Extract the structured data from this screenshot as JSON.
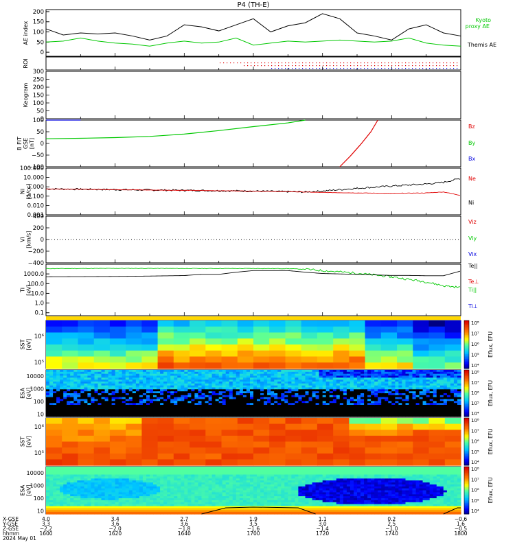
{
  "title": "P4 (TH-E)",
  "colors": {
    "black": "#000000",
    "green": "#00c800",
    "red": "#e00000",
    "blue": "#0000e0"
  },
  "chart_data": [
    {
      "type": "line",
      "panel": "ae_index",
      "ylabel": "AE index",
      "ylim": [
        -20,
        210
      ],
      "yticks": [
        "200",
        "150",
        "100",
        "50",
        "0"
      ],
      "x": [
        1600,
        1605,
        1610,
        1615,
        1620,
        1625,
        1630,
        1635,
        1640,
        1645,
        1650,
        1655,
        1700,
        1705,
        1710,
        1715,
        1720,
        1725,
        1730,
        1735,
        1740,
        1745,
        1750,
        1755,
        1800
      ],
      "series": [
        {
          "name": "Themis AE",
          "color": "black",
          "values": [
            115,
            85,
            95,
            90,
            95,
            80,
            60,
            80,
            135,
            125,
            105,
            135,
            165,
            100,
            130,
            145,
            190,
            165,
            95,
            80,
            60,
            115,
            135,
            95,
            80
          ]
        },
        {
          "name": "Kyoto proxy AE",
          "color": "green",
          "values": [
            50,
            55,
            70,
            55,
            45,
            40,
            30,
            45,
            55,
            45,
            50,
            70,
            35,
            45,
            55,
            50,
            55,
            60,
            55,
            50,
            55,
            70,
            45,
            35,
            30
          ]
        }
      ],
      "legend_labels": {
        "kyoto_line1": "Kyoto",
        "kyoto_line2": "proxy AE",
        "themis": "Themis AE"
      }
    },
    {
      "type": "scatter",
      "panel": "roi",
      "ylabel": "ROI"
    },
    {
      "type": "heatmap",
      "panel": "keogram",
      "ylabel": "Keogram",
      "ylim": [
        0,
        300
      ],
      "yticks": [
        "300",
        "250",
        "200",
        "150",
        "100",
        "50",
        "0"
      ]
    },
    {
      "type": "line",
      "panel": "b_field",
      "ylabel": "B FIT",
      "ylabel2": "GSE",
      "ylabel3": "[nT]",
      "ylim": [
        -100,
        100
      ],
      "yticks": [
        "100",
        "50",
        "0",
        "−50",
        "−100"
      ],
      "series": [
        {
          "name": "Bz",
          "color": "red",
          "x": [
            1725,
            1728,
            1731,
            1734,
            1736
          ],
          "values": [
            -100,
            -55,
            -5,
            50,
            100
          ]
        },
        {
          "name": "By",
          "color": "green",
          "x": [
            1600,
            1610,
            1620,
            1630,
            1640,
            1650,
            1700,
            1710,
            1715
          ],
          "values": [
            20,
            22,
            25,
            30,
            40,
            55,
            72,
            88,
            100
          ]
        },
        {
          "name": "Bx",
          "color": "blue",
          "x": [
            1600,
            1610
          ],
          "values": [
            100,
            100
          ]
        }
      ]
    },
    {
      "type": "line",
      "panel": "density",
      "ylabel": "Ni",
      "ylabel2": "[1/cc]",
      "ylabel3": "Ne",
      "yscale": "log",
      "ylim": [
        0.001,
        100
      ],
      "yticks": [
        "100.000",
        "10.000",
        "1.000",
        "0.100",
        "0.010",
        "0.001"
      ],
      "series": [
        {
          "name": "Ni",
          "color": "black",
          "x": [
            1600,
            1610,
            1620,
            1630,
            1640,
            1650,
            1700,
            1710,
            1715,
            1720,
            1730,
            1740,
            1750,
            1755,
            1800
          ],
          "values": [
            0.6,
            0.55,
            0.5,
            0.45,
            0.42,
            0.38,
            0.35,
            0.3,
            0.28,
            0.35,
            0.7,
            1.2,
            2.0,
            3.0,
            8.0
          ]
        },
        {
          "name": "Ne",
          "color": "red",
          "x": [
            1600,
            1610,
            1620,
            1630,
            1640,
            1650,
            1700,
            1710,
            1720,
            1730,
            1740,
            1750,
            1755,
            1800
          ],
          "values": [
            0.6,
            0.55,
            0.5,
            0.45,
            0.42,
            0.38,
            0.35,
            0.3,
            0.25,
            0.22,
            0.2,
            0.22,
            0.28,
            0.12
          ]
        }
      ]
    },
    {
      "type": "line",
      "panel": "velocity",
      "ylabel": "Vi",
      "ylabel2": "[km/s]",
      "ylim": [
        -400,
        400
      ],
      "yticks": [
        "400",
        "200",
        "0",
        "−200",
        "−400"
      ],
      "series": [
        {
          "name": "Viz"
        },
        {
          "name": "Viy"
        },
        {
          "name": "Vix"
        }
      ]
    },
    {
      "type": "line",
      "panel": "temperature",
      "ylabel": "Ti",
      "ylabel2": "[eV]",
      "yscale": "log",
      "ylim": [
        0.05,
        10000
      ],
      "yticks": [
        "1000.0",
        "100.0",
        "10.0",
        "1.0",
        "0.1"
      ],
      "series": [
        {
          "name": "Te||",
          "color": "black",
          "x": [
            1600,
            1610,
            1620,
            1630,
            1640,
            1645,
            1650,
            1655,
            1700,
            1710,
            1715,
            1720,
            1730,
            1740,
            1745,
            1750,
            1755,
            1800
          ],
          "values": [
            500,
            520,
            550,
            600,
            680,
            900,
            900,
            1500,
            2200,
            2200,
            1500,
            1100,
            900,
            700,
            700,
            650,
            650,
            2000
          ]
        },
        {
          "name": "Te⊥",
          "color": "red"
        },
        {
          "name": "Ti||",
          "color": "green",
          "x": [
            1600,
            1610,
            1620,
            1630,
            1640,
            1650,
            1700,
            1710,
            1715,
            1720,
            1730,
            1740,
            1750,
            1755,
            1800
          ],
          "values": [
            3500,
            3600,
            3700,
            3700,
            3600,
            3600,
            3600,
            3500,
            3000,
            2200,
            1200,
            500,
            150,
            60,
            40
          ]
        },
        {
          "name": "Ti⊥",
          "color": "blue"
        }
      ]
    },
    {
      "type": "heatmap",
      "panel": "sst_electron",
      "ylabel": "SST",
      "ylabel2": "[eV]",
      "yscale": "log",
      "yticks": [
        "10⁶",
        "10⁵"
      ],
      "colorbar_label": "Eflux, EFU",
      "colorbar_ticks": [
        "10⁸",
        "10⁴",
        "10⁵",
        "10⁶",
        "10⁷"
      ]
    },
    {
      "type": "heatmap",
      "panel": "esa_electron",
      "ylabel": "ESA",
      "ylabel2": "[eV]",
      "yscale": "log",
      "yticks": [
        "10000",
        "1000",
        "100",
        "10"
      ],
      "colorbar_label": "Eflux, EFU"
    },
    {
      "type": "heatmap",
      "panel": "sst_ion",
      "ylabel": "SST",
      "ylabel2": "[eV]",
      "yscale": "log",
      "yticks": [
        "10⁶",
        "10⁵"
      ],
      "colorbar_label": "Eflux, EFU"
    },
    {
      "type": "heatmap",
      "panel": "esa_ion",
      "ylabel": "ESA",
      "ylabel2": "[eV]",
      "yscale": "log",
      "yticks": [
        "10000",
        "1000",
        "100",
        "10"
      ],
      "colorbar_label": "Eflux, EFU"
    }
  ],
  "x_axis": {
    "row_labels": [
      "X-GSE",
      "Y-GSE",
      "Z-GSE",
      "hhmm",
      "2024 May 01"
    ],
    "columns": [
      {
        "x": "4.0",
        "y": "3.3",
        "z": "−2.2",
        "t": "1600"
      },
      {
        "x": "3.4",
        "y": "3.6",
        "z": "−2.0",
        "t": "1620"
      },
      {
        "x": "2.7",
        "y": "3.6",
        "z": "−1.8",
        "t": "1640"
      },
      {
        "x": "1.9",
        "y": "3.5",
        "z": "−1.6",
        "t": "1700"
      },
      {
        "x": "1.1",
        "y": "3.0",
        "z": "−1.4",
        "t": "1720"
      },
      {
        "x": "0.2",
        "y": "2.5",
        "z": "−1.0",
        "t": "1740"
      },
      {
        "x": "−0.6",
        "y": "1.6",
        "z": "−0.5",
        "t": "1800"
      }
    ]
  }
}
